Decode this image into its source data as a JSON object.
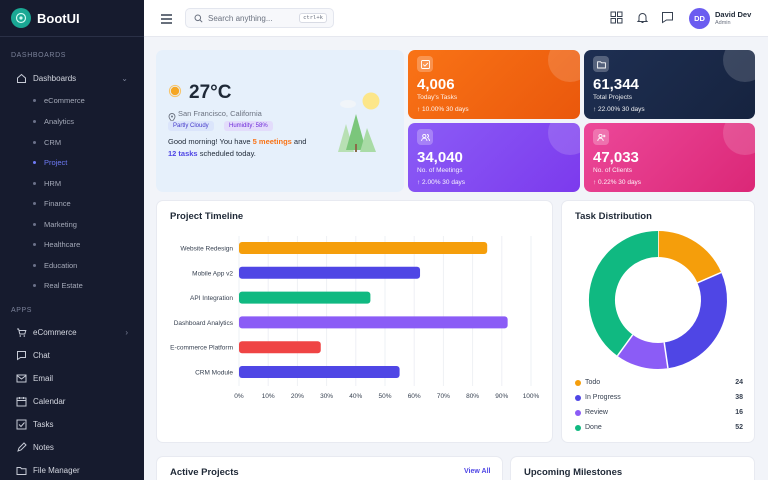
{
  "brand": {
    "name": "BootUI"
  },
  "sidebar": {
    "dashboards_label": "DASHBOARDS",
    "dashboards_item": "Dashboards",
    "subitems": [
      "eCommerce",
      "Analytics",
      "CRM",
      "Project",
      "HRM",
      "Finance",
      "Marketing",
      "Healthcare",
      "Education",
      "Real Estate"
    ],
    "active_subitem": "Project",
    "apps_label": "APPS",
    "apps": [
      "eCommerce",
      "Chat",
      "Email",
      "Calendar",
      "Tasks",
      "Notes",
      "File Manager"
    ]
  },
  "header": {
    "search_placeholder": "Search anything...",
    "search_shortcut": "ctrl+k",
    "user_initials": "DD",
    "user_name": "David Dev",
    "user_role": "Admin"
  },
  "weather": {
    "temperature": "27°C",
    "location": "San Francisco, California",
    "condition": "Partly Cloudy",
    "humidity": "Humidity: 58%",
    "greeting_pre": "Good morning! You have ",
    "meetings": "5 meetings",
    "greeting_mid": " and",
    "tasks": "12 tasks",
    "greeting_post": " scheduled today."
  },
  "stats": [
    {
      "value": "4,006",
      "label": "Today's Tasks",
      "change": "↑ 10.00% 30 days",
      "color": "#f97316",
      "color2": "#ea580c",
      "icon": "task-icon"
    },
    {
      "value": "61,344",
      "label": "Total Projects",
      "change": "↑ 22.00% 30 days",
      "color": "#1e2f52",
      "color2": "#16233f",
      "icon": "folder-icon"
    },
    {
      "value": "34,040",
      "label": "No. of Meetings",
      "change": "↑ 2.00% 30 days",
      "color": "#8b5cf6",
      "color2": "#7c3aed",
      "icon": "users-icon"
    },
    {
      "value": "47,033",
      "label": "No. of Clients",
      "change": "↑ 0.22% 30 days",
      "color": "#ec4899",
      "color2": "#db2777",
      "icon": "user-plus-icon"
    }
  ],
  "timeline": {
    "title": "Project Timeline",
    "chart_data": {
      "type": "bar",
      "orientation": "horizontal",
      "categories": [
        "Website Redesign",
        "Mobile App v2",
        "API Integration",
        "Dashboard Analytics",
        "E-commerce Platform",
        "CRM Module"
      ],
      "values": [
        85,
        62,
        45,
        92,
        28,
        55
      ],
      "colors": [
        "#f59e0b",
        "#4f46e5",
        "#10b981",
        "#8b5cf6",
        "#ef4444",
        "#4f46e5"
      ],
      "ticks": [
        "0%",
        "10%",
        "20%",
        "30%",
        "40%",
        "50%",
        "60%",
        "70%",
        "80%",
        "90%",
        "100%"
      ],
      "xlim": [
        0,
        100
      ],
      "grid": true
    }
  },
  "distribution": {
    "title": "Task Distribution",
    "chart_data": {
      "type": "pie",
      "donut": true,
      "categories": [
        "Todo",
        "In Progress",
        "Review",
        "Done"
      ],
      "values": [
        24,
        38,
        16,
        52
      ],
      "colors": [
        "#f59e0b",
        "#4f46e5",
        "#8b5cf6",
        "#10b981"
      ]
    }
  },
  "active_projects": {
    "title": "Active Projects",
    "view_all": "View All"
  },
  "milestones": {
    "title": "Upcoming Milestones"
  }
}
